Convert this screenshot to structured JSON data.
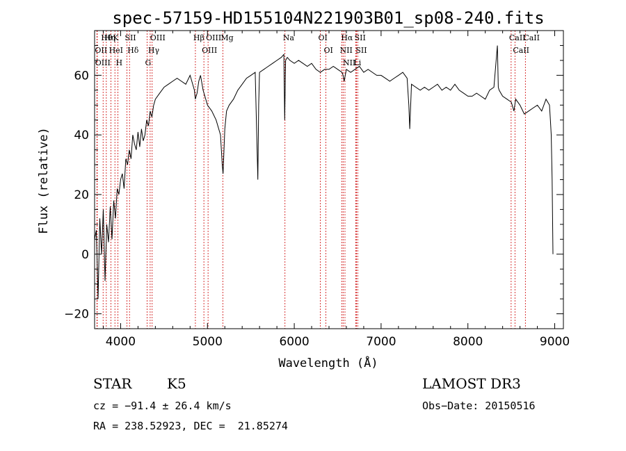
{
  "chart_data": {
    "type": "line",
    "title": "spec-57159-HD155104N221903B01_sp08-240.fits",
    "xlabel": "Wavelength (Å)",
    "ylabel": "Flux (relative)",
    "xlim": [
      3700,
      9100
    ],
    "ylim": [
      -25,
      75
    ],
    "xticks": [
      4000,
      5000,
      6000,
      7000,
      8000,
      9000
    ],
    "yticks": [
      -20,
      0,
      20,
      40,
      60
    ],
    "series": [
      {
        "name": "flux",
        "x": [
          3700,
          3720,
          3740,
          3760,
          3780,
          3800,
          3820,
          3840,
          3860,
          3880,
          3900,
          3920,
          3940,
          3960,
          3980,
          4000,
          4020,
          4040,
          4060,
          4080,
          4100,
          4120,
          4140,
          4160,
          4180,
          4200,
          4220,
          4240,
          4260,
          4280,
          4300,
          4320,
          4340,
          4360,
          4380,
          4400,
          4450,
          4500,
          4550,
          4600,
          4650,
          4700,
          4750,
          4800,
          4850,
          4860,
          4880,
          4900,
          4920,
          4950,
          5000,
          5050,
          5100,
          5150,
          5170,
          5180,
          5200,
          5220,
          5250,
          5300,
          5350,
          5400,
          5450,
          5500,
          5550,
          5580,
          5590,
          5600,
          5650,
          5700,
          5750,
          5800,
          5850,
          5880,
          5890,
          5900,
          5920,
          5950,
          6000,
          6050,
          6100,
          6150,
          6200,
          6250,
          6300,
          6350,
          6400,
          6450,
          6500,
          6550,
          6563,
          6575,
          6600,
          6650,
          6700,
          6750,
          6800,
          6850,
          6900,
          6950,
          7000,
          7050,
          7100,
          7150,
          7200,
          7250,
          7300,
          7320,
          7330,
          7350,
          7400,
          7450,
          7500,
          7550,
          7600,
          7650,
          7700,
          7750,
          7800,
          7850,
          7900,
          7950,
          8000,
          8050,
          8100,
          8150,
          8200,
          8250,
          8300,
          8340,
          8350,
          8360,
          8400,
          8450,
          8500,
          8530,
          8550,
          8600,
          8650,
          8700,
          8750,
          8800,
          8850,
          8900,
          8940,
          8950,
          8960,
          8970,
          8980
        ],
        "y": [
          5,
          8,
          -15,
          12,
          0,
          15,
          -9,
          10,
          4,
          16,
          5,
          18,
          12,
          22,
          20,
          25,
          27,
          22,
          32,
          30,
          35,
          32,
          40,
          37,
          35,
          41,
          36,
          42,
          38,
          40,
          45,
          43,
          48,
          46,
          50,
          52,
          54,
          56,
          57,
          58,
          59,
          58,
          57,
          60,
          55,
          52,
          54,
          58,
          60,
          55,
          50,
          48,
          45,
          40,
          30,
          27,
          42,
          48,
          50,
          52,
          55,
          57,
          59,
          60,
          61,
          25,
          50,
          61,
          62,
          63,
          64,
          65,
          66,
          67,
          45,
          65,
          66,
          65,
          64,
          65,
          64,
          63,
          64,
          62,
          61,
          62,
          62,
          63,
          62,
          61,
          60,
          58,
          62,
          61,
          62,
          63,
          61,
          62,
          61,
          60,
          60,
          59,
          58,
          59,
          60,
          61,
          59,
          50,
          42,
          57,
          56,
          55,
          56,
          55,
          56,
          57,
          55,
          56,
          55,
          57,
          55,
          54,
          53,
          53,
          54,
          53,
          52,
          55,
          56,
          70,
          56,
          55,
          53,
          52,
          51,
          48,
          52,
          50,
          47,
          48,
          49,
          50,
          48,
          52,
          50,
          45,
          40,
          25,
          0
        ]
      }
    ],
    "spectral_lines": [
      {
        "label": "Hθ",
        "x": 3798
      },
      {
        "label": "OII",
        "x": 3727
      },
      {
        "label": "OIII",
        "x": 3730
      },
      {
        "label": "K",
        "x": 3934
      },
      {
        "label": "HeI",
        "x": 3889
      },
      {
        "label": "Hη",
        "x": 3835
      },
      {
        "label": "SII",
        "x": 4072
      },
      {
        "label": "H",
        "x": 3968
      },
      {
        "label": "Hδ",
        "x": 4102
      },
      {
        "label": "OIII",
        "x": 4363
      },
      {
        "label": "Hγ",
        "x": 4340
      },
      {
        "label": "G",
        "x": 4305
      },
      {
        "label": "Hβ",
        "x": 4861
      },
      {
        "label": "OIII",
        "x": 4959
      },
      {
        "label": "OIII",
        "x": 5007
      },
      {
        "label": "Mg",
        "x": 5177
      },
      {
        "label": "Na",
        "x": 5893
      },
      {
        "label": "OI",
        "x": 6300
      },
      {
        "label": "OI",
        "x": 6364
      },
      {
        "label": "Hα",
        "x": 6563
      },
      {
        "label": "NII",
        "x": 6548
      },
      {
        "label": "NII",
        "x": 6584
      },
      {
        "label": "SII",
        "x": 6717
      },
      {
        "label": "SII",
        "x": 6731
      },
      {
        "label": "Li",
        "x": 6708
      },
      {
        "label": "CaII",
        "x": 8498
      },
      {
        "label": "CaII",
        "x": 8542
      },
      {
        "label": "CaII",
        "x": 8662
      }
    ]
  },
  "info": {
    "class": "STAR",
    "subclass": "K5",
    "survey": "LAMOST DR3",
    "redshift": "cz = −91.4 ± 26.4 km/s",
    "obs_date": "Obs−Date: 20150516",
    "coords": "RA = 238.52923, DEC =  21.85274"
  },
  "colors": {
    "line": "#000000",
    "spectral_line": "#cc0000",
    "axis": "#000000",
    "background": "#ffffff"
  }
}
